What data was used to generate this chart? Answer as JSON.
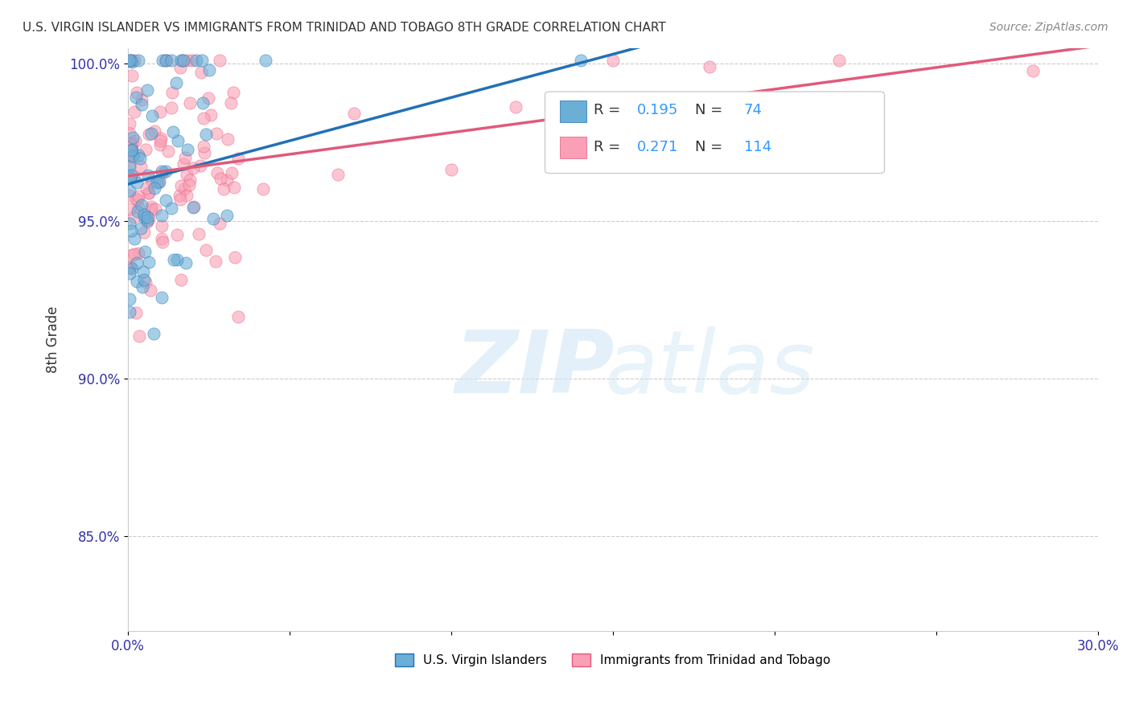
{
  "title": "U.S. VIRGIN ISLANDER VS IMMIGRANTS FROM TRINIDAD AND TOBAGO 8TH GRADE CORRELATION CHART",
  "source": "Source: ZipAtlas.com",
  "ylabel": "8th Grade",
  "xlim": [
    0.0,
    0.3
  ],
  "ylim": [
    0.82,
    1.005
  ],
  "xticks": [
    0.0,
    0.05,
    0.1,
    0.15,
    0.2,
    0.25,
    0.3
  ],
  "xticklabels": [
    "0.0%",
    "",
    "",
    "",
    "",
    "",
    "30.0%"
  ],
  "yticks": [
    0.85,
    0.9,
    0.95,
    1.0
  ],
  "yticklabels": [
    "85.0%",
    "90.0%",
    "95.0%",
    "100.0%"
  ],
  "blue_color": "#6baed6",
  "pink_color": "#fa9fb5",
  "blue_line_color": "#2171b5",
  "pink_line_color": "#e05a7a",
  "legend_R_blue": "0.195",
  "legend_N_blue": "74",
  "legend_R_pink": "0.271",
  "legend_N_pink": "114",
  "legend_color": "#3399ff",
  "R_blue": 0.195,
  "R_pink": 0.271,
  "N_blue": 74,
  "N_pink": 114
}
